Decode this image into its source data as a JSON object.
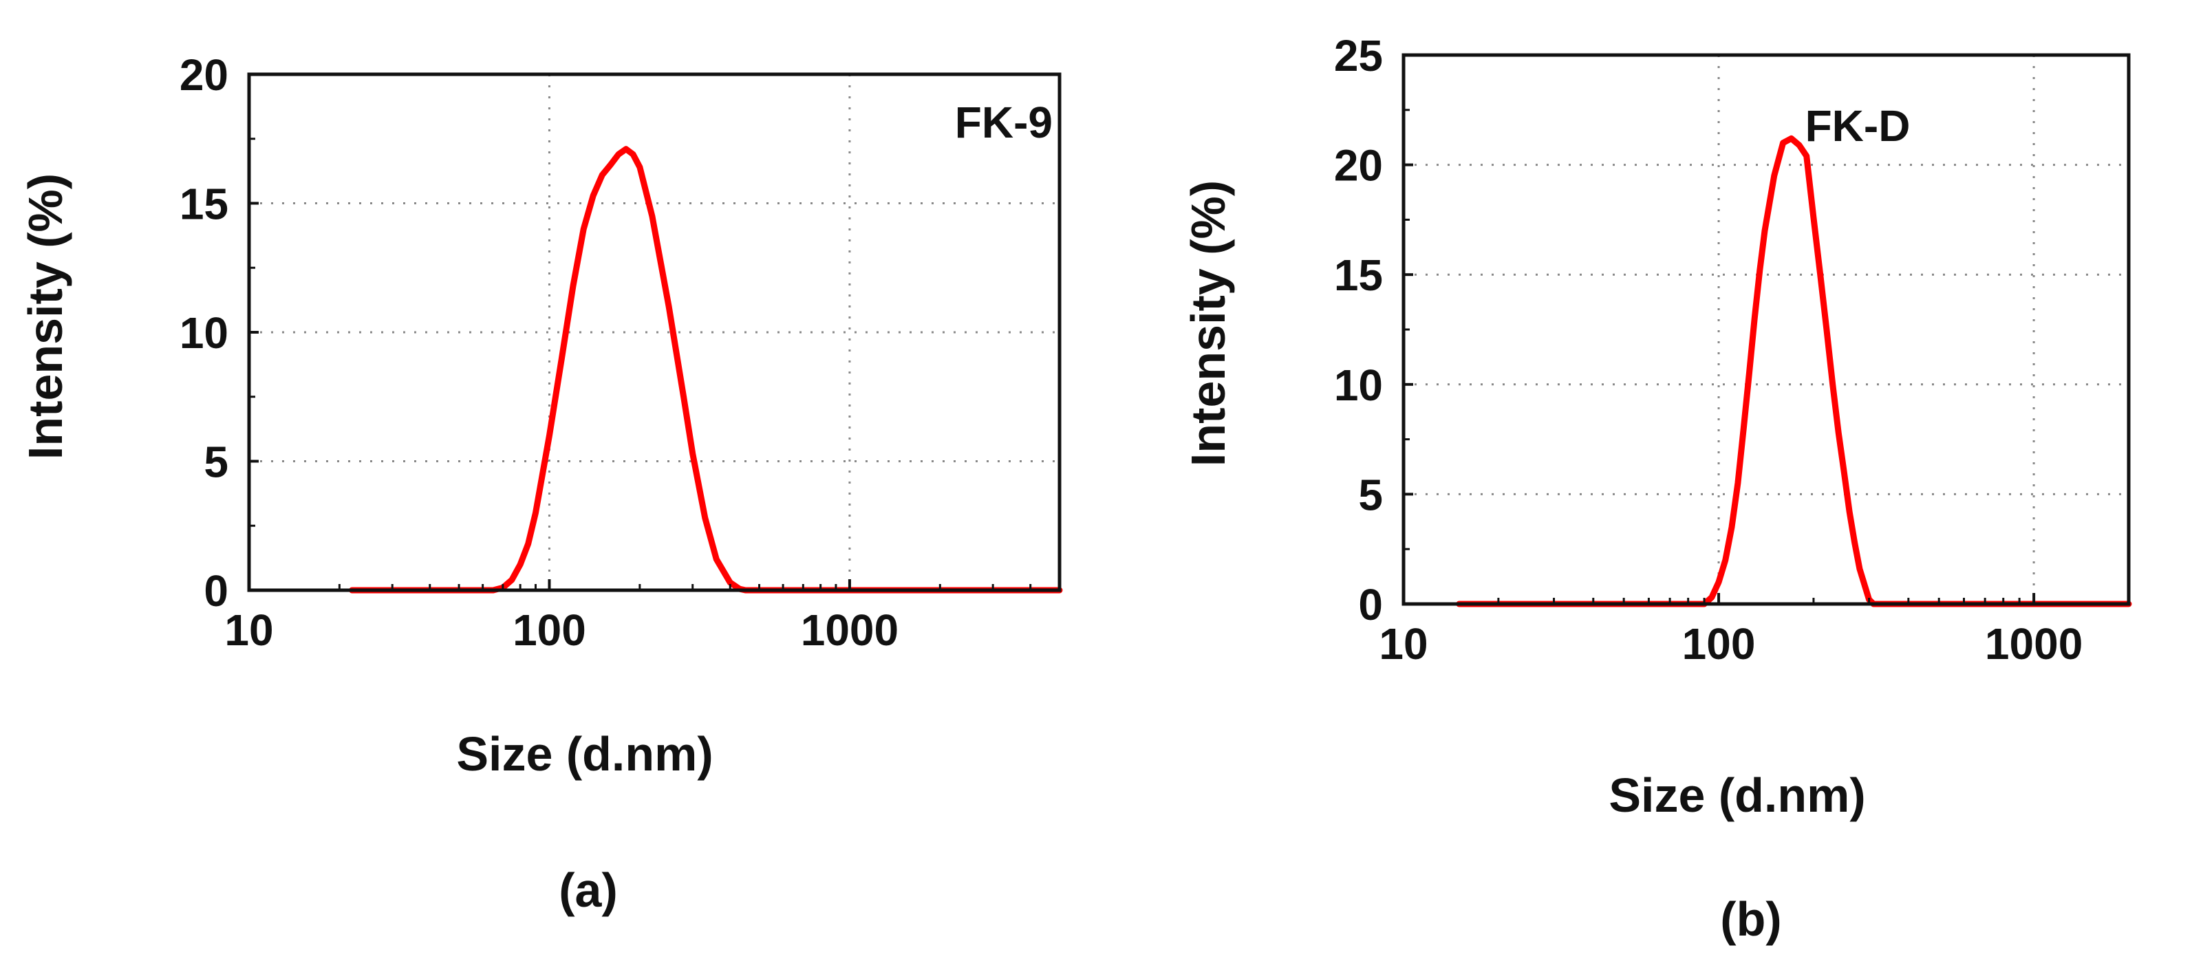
{
  "chart_data": [
    {
      "type": "line",
      "panel_label": "FK-9",
      "caption": "(a)",
      "xlabel": "Size (d.nm)",
      "ylabel": "Intensity (%)",
      "x_scale": "log",
      "xlim": [
        10,
        5000
      ],
      "ylim": [
        0,
        20
      ],
      "x_ticks": [
        "10",
        "100",
        "1000"
      ],
      "y_ticks": [
        "0",
        "5",
        "10",
        "15",
        "20"
      ],
      "grid": true,
      "line_color": "#ff0000",
      "series": [
        {
          "x": [
            22,
            50,
            65,
            70,
            75,
            80,
            85,
            90,
            100,
            110,
            120,
            130,
            140,
            150,
            160,
            170,
            180,
            190,
            200,
            220,
            250,
            280,
            300,
            330,
            360,
            400,
            430,
            450,
            500,
            800,
            1500,
            5000
          ],
          "y": [
            0,
            0,
            0,
            0.1,
            0.4,
            1.0,
            1.8,
            3.0,
            6.0,
            9.0,
            11.8,
            14.0,
            15.3,
            16.1,
            16.5,
            16.9,
            17.1,
            16.9,
            16.4,
            14.5,
            11.0,
            7.5,
            5.3,
            2.8,
            1.2,
            0.3,
            0.05,
            0,
            0,
            0,
            0,
            0
          ]
        }
      ]
    },
    {
      "type": "line",
      "panel_label": "FK-D",
      "caption": "(b)",
      "xlabel": "Size (d.nm)",
      "ylabel": "Intensity (%)",
      "x_scale": "log",
      "xlim": [
        10,
        2000
      ],
      "ylim": [
        0,
        25
      ],
      "x_ticks": [
        "10",
        "100",
        "1000"
      ],
      "y_ticks": [
        "0",
        "5",
        "10",
        "15",
        "20",
        "25"
      ],
      "grid": true,
      "line_color": "#ff0000",
      "series": [
        {
          "x": [
            15,
            50,
            90,
            95,
            100,
            105,
            110,
            115,
            120,
            125,
            130,
            135,
            140,
            150,
            160,
            170,
            180,
            190,
            200,
            210,
            220,
            230,
            240,
            250,
            260,
            270,
            280,
            300,
            310,
            500,
            1000,
            2000
          ],
          "y": [
            0,
            0,
            0,
            0.3,
            1.0,
            2.0,
            3.5,
            5.5,
            8.0,
            10.5,
            13.0,
            15.2,
            17.0,
            19.5,
            21.0,
            21.2,
            20.9,
            20.4,
            17.6,
            15.0,
            12.5,
            10.0,
            7.8,
            6.0,
            4.2,
            2.8,
            1.6,
            0.2,
            0,
            0,
            0,
            0
          ]
        }
      ]
    }
  ]
}
